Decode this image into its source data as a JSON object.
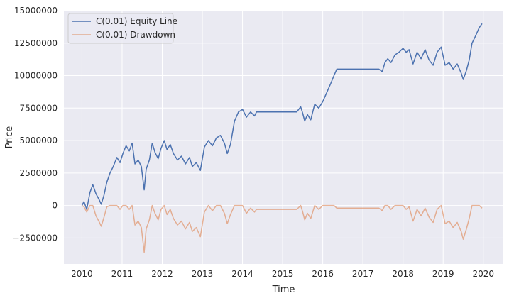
{
  "chart_data": {
    "type": "line",
    "title": "",
    "xlabel": "Time",
    "ylabel": "Price",
    "xlim": [
      2009.55,
      2020.5
    ],
    "ylim": [
      -4500000,
      15000000
    ],
    "x_ticks": [
      2010,
      2011,
      2012,
      2013,
      2014,
      2015,
      2016,
      2017,
      2018,
      2019,
      2020
    ],
    "x_tick_labels": [
      "2010",
      "2011",
      "2012",
      "2013",
      "2014",
      "2015",
      "2016",
      "2017",
      "2018",
      "2019",
      "2020"
    ],
    "y_ticks": [
      -2500000,
      0,
      2500000,
      5000000,
      7500000,
      10000000,
      12500000,
      15000000
    ],
    "y_tick_labels": [
      "−2500000",
      "0",
      "2500000",
      "5000000",
      "7500000",
      "10000000",
      "12500000",
      "15000000"
    ],
    "grid": true,
    "background": "#eaeaf2",
    "legend_position": "top-left",
    "series": [
      {
        "name": "C(0.01) Equity Line",
        "color": "#4c72b0",
        "x": [
          2010.0,
          2010.05,
          2010.12,
          2010.2,
          2010.27,
          2010.35,
          2010.42,
          2010.48,
          2010.55,
          2010.62,
          2010.7,
          2010.78,
          2010.87,
          2010.95,
          2011.02,
          2011.1,
          2011.18,
          2011.25,
          2011.32,
          2011.4,
          2011.48,
          2011.55,
          2011.6,
          2011.68,
          2011.75,
          2011.82,
          2011.9,
          2011.97,
          2012.05,
          2012.12,
          2012.2,
          2012.28,
          2012.38,
          2012.48,
          2012.58,
          2012.68,
          2012.75,
          2012.85,
          2012.95,
          2013.05,
          2013.15,
          2013.25,
          2013.35,
          2013.45,
          2013.55,
          2013.62,
          2013.7,
          2013.8,
          2013.9,
          2014.0,
          2014.1,
          2014.2,
          2014.3,
          2014.35,
          2014.6,
          2014.9,
          2015.2,
          2015.35,
          2015.45,
          2015.5,
          2015.55,
          2015.62,
          2015.7,
          2015.8,
          2015.9,
          2016.0,
          2016.1,
          2016.2,
          2016.28,
          2016.35,
          2016.6,
          2017.0,
          2017.3,
          2017.4,
          2017.48,
          2017.55,
          2017.62,
          2017.7,
          2017.8,
          2017.9,
          2018.0,
          2018.08,
          2018.15,
          2018.25,
          2018.35,
          2018.45,
          2018.55,
          2018.65,
          2018.75,
          2018.85,
          2018.95,
          2019.05,
          2019.15,
          2019.25,
          2019.35,
          2019.45,
          2019.5,
          2019.58,
          2019.65,
          2019.72,
          2019.8,
          2019.9,
          2019.97
        ],
        "y": [
          0,
          300000,
          -300000,
          1000000,
          1600000,
          900000,
          500000,
          100000,
          800000,
          1800000,
          2500000,
          3000000,
          3700000,
          3300000,
          4000000,
          4600000,
          4200000,
          4800000,
          3200000,
          3500000,
          3000000,
          1200000,
          2800000,
          3500000,
          4800000,
          4100000,
          3600000,
          4400000,
          5000000,
          4300000,
          4700000,
          4000000,
          3500000,
          3800000,
          3200000,
          3700000,
          3000000,
          3300000,
          2700000,
          4500000,
          5000000,
          4600000,
          5200000,
          5400000,
          4800000,
          4000000,
          4700000,
          6500000,
          7200000,
          7400000,
          6800000,
          7200000,
          6900000,
          7200000,
          7200000,
          7200000,
          7200000,
          7200000,
          7600000,
          7100000,
          6500000,
          7000000,
          6600000,
          7800000,
          7500000,
          8000000,
          8700000,
          9400000,
          10000000,
          10500000,
          10500000,
          10500000,
          10500000,
          10500000,
          10300000,
          11000000,
          11300000,
          11000000,
          11600000,
          11800000,
          12100000,
          11800000,
          12000000,
          10900000,
          11800000,
          11300000,
          12000000,
          11200000,
          10800000,
          11800000,
          12200000,
          10800000,
          11000000,
          10500000,
          10900000,
          10200000,
          9700000,
          10400000,
          11200000,
          12500000,
          13000000,
          13700000,
          14000000
        ]
      },
      {
        "name": "C(0.01) Drawdown",
        "color": "#dd8452",
        "x": [
          2010.0,
          2010.05,
          2010.12,
          2010.2,
          2010.27,
          2010.35,
          2010.42,
          2010.48,
          2010.55,
          2010.62,
          2010.7,
          2010.78,
          2010.87,
          2010.95,
          2011.02,
          2011.1,
          2011.18,
          2011.25,
          2011.32,
          2011.4,
          2011.48,
          2011.55,
          2011.6,
          2011.68,
          2011.75,
          2011.82,
          2011.9,
          2011.97,
          2012.05,
          2012.12,
          2012.2,
          2012.28,
          2012.38,
          2012.48,
          2012.58,
          2012.68,
          2012.75,
          2012.85,
          2012.95,
          2013.05,
          2013.15,
          2013.25,
          2013.35,
          2013.45,
          2013.55,
          2013.62,
          2013.7,
          2013.8,
          2013.9,
          2014.0,
          2014.1,
          2014.2,
          2014.3,
          2014.35,
          2014.6,
          2014.9,
          2015.2,
          2015.35,
          2015.45,
          2015.5,
          2015.55,
          2015.62,
          2015.7,
          2015.8,
          2015.9,
          2016.0,
          2016.1,
          2016.2,
          2016.28,
          2016.35,
          2016.6,
          2017.0,
          2017.3,
          2017.4,
          2017.48,
          2017.55,
          2017.62,
          2017.7,
          2017.8,
          2017.9,
          2018.0,
          2018.08,
          2018.15,
          2018.25,
          2018.35,
          2018.45,
          2018.55,
          2018.65,
          2018.75,
          2018.85,
          2018.95,
          2019.05,
          2019.15,
          2019.25,
          2019.35,
          2019.45,
          2019.5,
          2019.58,
          2019.65,
          2019.72,
          2019.8,
          2019.9,
          2019.97
        ],
        "y": [
          0,
          -100000,
          -500000,
          0,
          0,
          -800000,
          -1200000,
          -1600000,
          -900000,
          -100000,
          0,
          0,
          0,
          -300000,
          0,
          0,
          -300000,
          0,
          -1500000,
          -1200000,
          -1700000,
          -3600000,
          -1800000,
          -1100000,
          0,
          -600000,
          -1100000,
          -300000,
          0,
          -700000,
          -300000,
          -1000000,
          -1500000,
          -1200000,
          -1800000,
          -1300000,
          -2000000,
          -1700000,
          -2400000,
          -500000,
          0,
          -400000,
          0,
          0,
          -600000,
          -1400000,
          -700000,
          0,
          0,
          0,
          -600000,
          -200000,
          -500000,
          -300000,
          -300000,
          -300000,
          -300000,
          -300000,
          0,
          -500000,
          -1100000,
          -600000,
          -1000000,
          0,
          -300000,
          0,
          0,
          0,
          0,
          -200000,
          -200000,
          -200000,
          -200000,
          -200000,
          -400000,
          0,
          0,
          -300000,
          0,
          0,
          0,
          -300000,
          -100000,
          -1200000,
          -300000,
          -800000,
          -200000,
          -900000,
          -1300000,
          -300000,
          0,
          -1400000,
          -1200000,
          -1700000,
          -1300000,
          -2000000,
          -2600000,
          -1800000,
          -1000000,
          0,
          0,
          0,
          -200000
        ]
      }
    ]
  }
}
